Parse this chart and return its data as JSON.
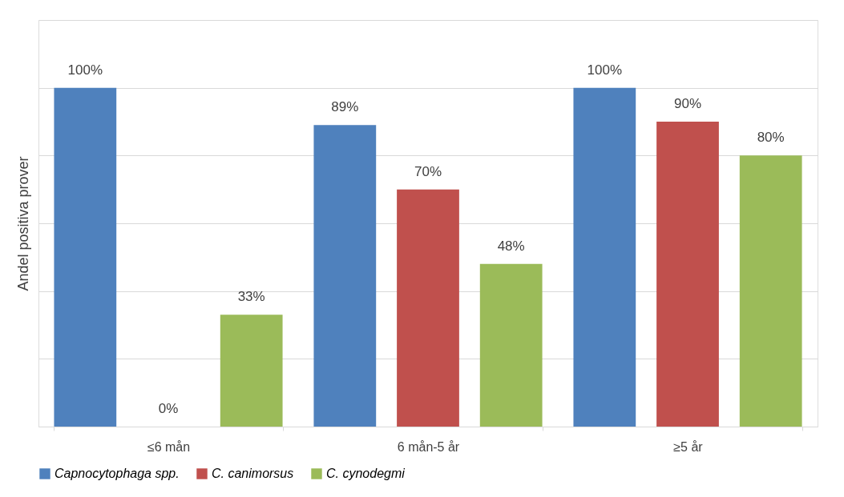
{
  "chart_data": {
    "type": "bar",
    "ylabel": "Andel positiva prover",
    "categories": [
      "≤6 mån",
      "6 mån-5 år",
      "≥5 år"
    ],
    "series": [
      {
        "name": "Capnocytophaga spp.",
        "color": "#4f81bd",
        "values": [
          100,
          89,
          100
        ],
        "value_labels": [
          "100%",
          "89%",
          "100%"
        ]
      },
      {
        "name": "C. canimorsus",
        "color": "#c0504d",
        "values": [
          0,
          70,
          90
        ],
        "value_labels": [
          "0%",
          "70%",
          "90%"
        ]
      },
      {
        "name": "C. cynodegmi",
        "color": "#9bbb59",
        "values": [
          33,
          48,
          80
        ],
        "value_labels": [
          "33%",
          "48%",
          "80%"
        ]
      }
    ],
    "ylim": [
      0,
      120
    ],
    "yticks": [
      {
        "value": 0,
        "label": null
      },
      {
        "value": 20,
        "label": null
      },
      {
        "value": 40,
        "label": null
      },
      {
        "value": 60,
        "label": null
      },
      {
        "value": 80,
        "label": null
      },
      {
        "value": 100,
        "label": null
      },
      {
        "value": 120,
        "label": null
      }
    ],
    "grid": "y",
    "legend": "bottom",
    "tick_labels": "x"
  }
}
